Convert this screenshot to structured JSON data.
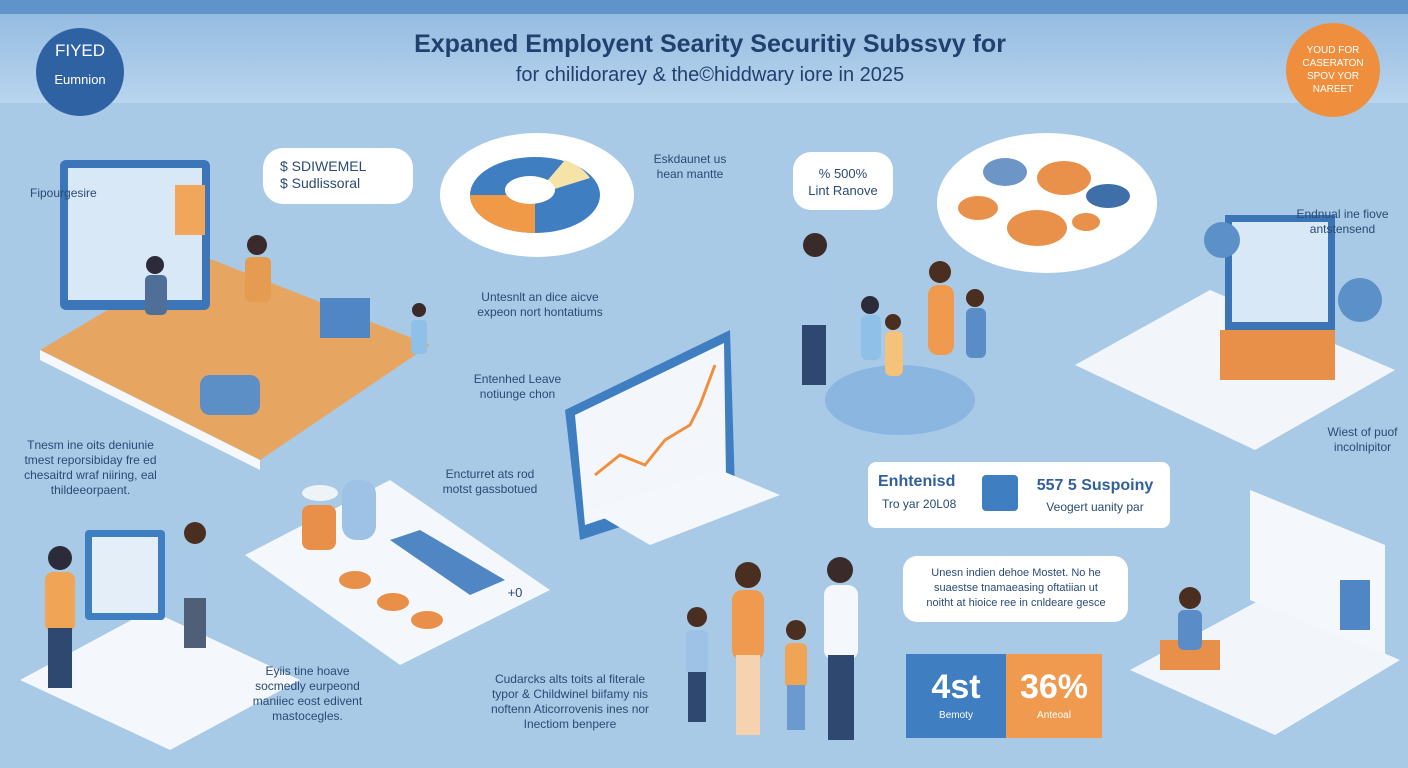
{
  "header": {
    "badge_left": [
      "FIYED",
      "Eumnion"
    ],
    "title": [
      "Expaned Employent Searity Securitiy Subssvy for",
      "for chilidorarey & the©hiddwary iore in 2025"
    ],
    "badge_right": "YOUD FOR\nCASERATON\nSPOV YOR\nNAREET"
  },
  "bubbles": [
    "$ SDIWEMEL\n$ Sudlissoral",
    "% 500%\nLint Ranove"
  ],
  "labels": [
    "Fipourgesire",
    "Eskdaunet us\nhean mantte",
    "Untesnlt an dice aicve\nexpeon nort hontatiums",
    "Entenhed Leave\nnotiunge chon",
    "Endnual ine fiove\nantstensend",
    "Tnesm ine oits deniunie\ntmest reporsibiday fre ed\nchesaitrd wraf niiring, eal\nthildeeorpaent.",
    "Encturret ats rod\nmotst gassbotued",
    "Wiest of puof\nincolnipitor",
    "Eyiis tine hoave\nsocmedly eurpeond\nmaniiec eost edivent\nmastocegles.",
    "Cudarcks alts toits al fiterale\ntypor & Childwinel biifamy nis\nnoftenn Aticorrovenis ines nor\nInectiom benpere",
    "+0"
  ],
  "card": {
    "left_title": "Enhtenisd",
    "left_sub": "Tro yar 20L08",
    "right_title": "557 5 Suspoiny",
    "right_sub": "Veogert uanity par"
  },
  "note": "Unesn indien dehoe Mostet. No he\nsuaestse tnamaeasing oftatiian ut\nnoitht at hioice ree in cnldeare gesce",
  "stats": [
    {
      "value": "4st",
      "label": "Bemoty"
    },
    {
      "value": "36%",
      "label": "Anteoal"
    }
  ]
}
